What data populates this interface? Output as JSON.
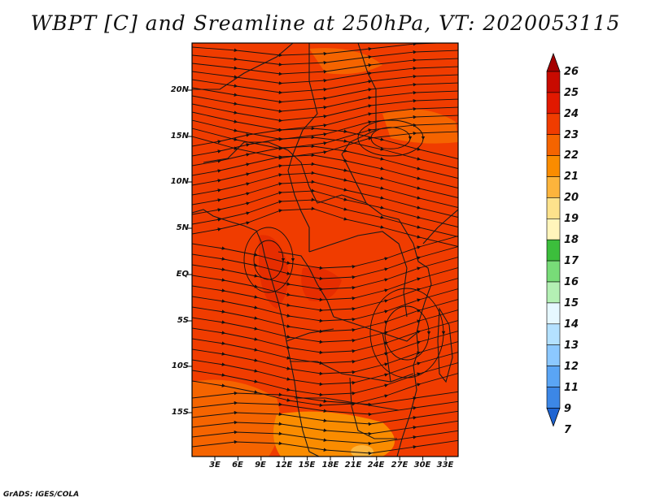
{
  "title": "WBPT [C] and Sreamline at 250hPa, VT: 2020053115",
  "footer": "GrADS: IGES/COLA",
  "latitude_labels": [
    "20N",
    "15N",
    "10N",
    "5N",
    "EQ",
    "5S",
    "10S",
    "15S"
  ],
  "longitude_labels": [
    "3E",
    "6E",
    "9E",
    "12E",
    "15E",
    "18E",
    "21E",
    "24E",
    "27E",
    "30E",
    "33E"
  ],
  "colorbar": {
    "labels": [
      "26",
      "25",
      "24",
      "23",
      "22",
      "21",
      "20",
      "19",
      "18",
      "17",
      "16",
      "15",
      "14",
      "13",
      "12",
      "11",
      "9",
      "7"
    ],
    "colors": [
      "#a50000",
      "#c80a00",
      "#e11900",
      "#f03c00",
      "#f56400",
      "#fa8c00",
      "#fcb43c",
      "#fde28c",
      "#fff5bb",
      "#3cbe3c",
      "#78dc78",
      "#b4f0b4",
      "#e6f8ff",
      "#b4e1ff",
      "#8cc8ff",
      "#5aa5f5",
      "#3c87e6",
      "#1e64d2"
    ]
  },
  "map_colors": {
    "main": "#f03c00",
    "warm": "#e62d00",
    "cool": "#f56400",
    "cooler": "#fa8c00",
    "coolest": "#fcb43c"
  }
}
